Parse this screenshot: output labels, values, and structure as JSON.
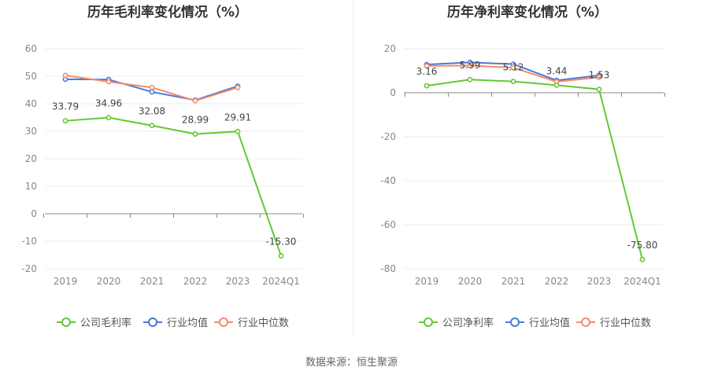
{
  "source_text": "数据来源：恒生聚源",
  "colors": {
    "company": "#65c832",
    "avg": "#4a78d8",
    "median": "#f28c6a",
    "grid": "#e8ecf2",
    "axis": "#888888",
    "label": "#555555",
    "title": "#333333"
  },
  "chart_data": [
    {
      "type": "line",
      "title": "历年毛利率变化情况（%）",
      "categories": [
        "2019",
        "2020",
        "2021",
        "2022",
        "2023",
        "2024Q1"
      ],
      "ylim": [
        -20,
        60
      ],
      "yticks": [
        60,
        50,
        40,
        30,
        20,
        10,
        0,
        -10,
        -20
      ],
      "ytick_labels": [
        "60",
        "50",
        "40",
        "30",
        "20",
        "10",
        "0",
        "-10",
        "-20"
      ],
      "grid": true,
      "legend_position": "bottom",
      "series": [
        {
          "name": "公司毛利率",
          "color": "#65c832",
          "values": [
            33.79,
            34.96,
            32.08,
            28.99,
            29.91,
            -15.3
          ],
          "labels": [
            "33.79",
            "34.96",
            "32.08",
            "28.99",
            "29.91",
            "-15.30"
          ]
        },
        {
          "name": "行业均值",
          "color": "#4a78d8",
          "values": [
            48.9,
            48.8,
            44.3,
            41.3,
            46.4,
            null
          ]
        },
        {
          "name": "行业中位数",
          "color": "#f28c6a",
          "values": [
            50.3,
            48.0,
            45.9,
            41.1,
            45.9,
            null
          ]
        }
      ]
    },
    {
      "type": "line",
      "title": "历年净利率变化情况（%）",
      "categories": [
        "2019",
        "2020",
        "2021",
        "2022",
        "2023",
        "2024Q1"
      ],
      "ylim": [
        -80,
        20
      ],
      "yticks": [
        20,
        0,
        -20,
        -40,
        -60,
        -80
      ],
      "ytick_labels": [
        "20",
        "0",
        "-20",
        "-40",
        "-60",
        "-80"
      ],
      "grid": true,
      "legend_position": "bottom",
      "series": [
        {
          "name": "公司净利率",
          "color": "#65c832",
          "values": [
            3.16,
            5.99,
            5.12,
            3.44,
            1.53,
            -75.8
          ],
          "labels": [
            "3.16",
            "5.99",
            "5.12",
            "3.44",
            "1.53",
            "-75.80"
          ]
        },
        {
          "name": "行业均值",
          "color": "#4a78d8",
          "values": [
            12.8,
            13.8,
            13.0,
            5.6,
            7.9,
            null
          ]
        },
        {
          "name": "行业中位数",
          "color": "#f28c6a",
          "values": [
            12.2,
            12.3,
            11.4,
            5.0,
            7.0,
            null
          ]
        }
      ]
    }
  ]
}
